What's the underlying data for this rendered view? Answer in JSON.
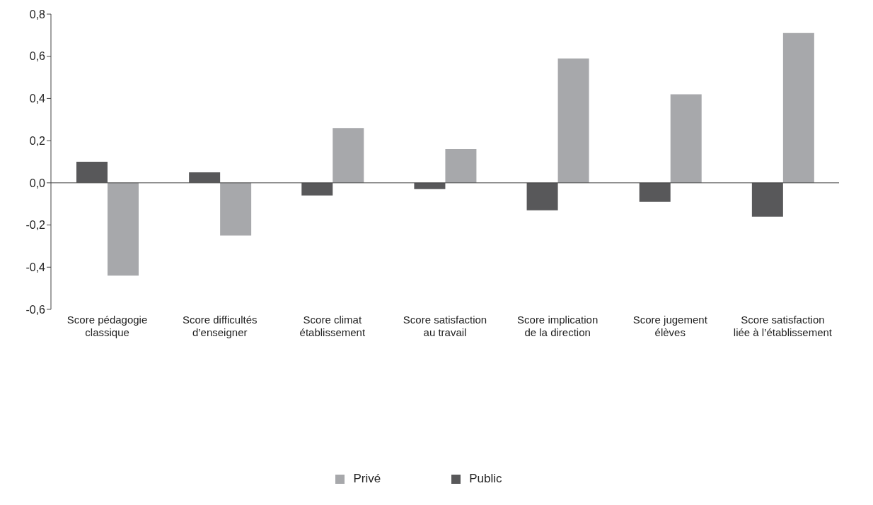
{
  "chart_data": {
    "type": "bar",
    "categories": [
      "Score pédagogie classique",
      "Score difficultés d’enseigner",
      "Score climat établissement",
      "Score satisfaction au travail",
      "Score implication de la direction",
      "Score jugement élèves",
      "Score satisfaction liée à l’établissement"
    ],
    "series": [
      {
        "name": "Public",
        "color": "#58585a",
        "values": [
          0.1,
          0.05,
          -0.06,
          -0.03,
          -0.13,
          -0.09,
          -0.16
        ]
      },
      {
        "name": "Privé",
        "color": "#a7a8ab",
        "values": [
          -0.44,
          -0.25,
          0.26,
          0.16,
          0.59,
          0.42,
          0.71
        ]
      }
    ],
    "ylim": [
      -0.6,
      0.8
    ],
    "yticks": [
      {
        "value": -0.6,
        "label": "-0,6"
      },
      {
        "value": -0.4,
        "label": "-0,4"
      },
      {
        "value": -0.2,
        "label": "-0,2"
      },
      {
        "value": 0,
        "label": "0,0"
      },
      {
        "value": 0.2,
        "label": "0,2"
      },
      {
        "value": 0.4,
        "label": "0,4"
      },
      {
        "value": 0.6,
        "label": "0,6"
      },
      {
        "value": 0.8,
        "label": "0,8"
      }
    ],
    "legend": "bottom"
  }
}
